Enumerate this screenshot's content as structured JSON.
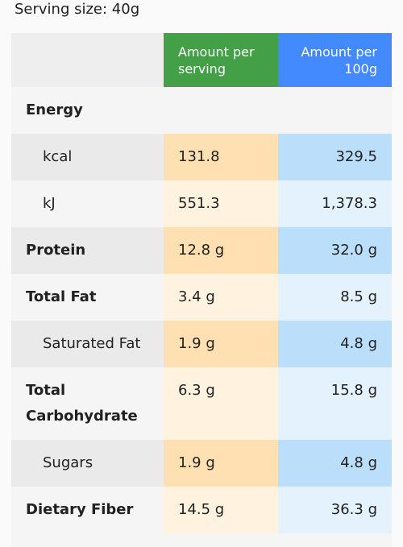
{
  "header": {
    "serving_size": "Serving size: 40g"
  },
  "table": {
    "columns": [
      "Amount per serving",
      "Amount per 100g"
    ],
    "rows": [
      {
        "label": "Energy",
        "indent": false
      },
      {
        "label": "kcal",
        "indent": true,
        "per_serving": "131.8",
        "per_100g": "329.5"
      },
      {
        "label": "kJ",
        "indent": true,
        "per_serving": "551.3",
        "per_100g": "1,378.3"
      },
      {
        "label": "Protein",
        "indent": false,
        "per_serving": "12.8 g",
        "per_100g": "32.0 g"
      },
      {
        "label": "Total Fat",
        "indent": false,
        "per_serving": "3.4 g",
        "per_100g": "8.5 g"
      },
      {
        "label": "Saturated Fat",
        "indent": true,
        "per_serving": "1.9 g",
        "per_100g": "4.8 g"
      },
      {
        "label": "Total Carbohydrate",
        "indent": false,
        "per_serving": "6.3 g",
        "per_100g": "15.8 g"
      },
      {
        "label": "Sugars",
        "indent": true,
        "per_serving": "1.9 g",
        "per_100g": "4.8 g"
      },
      {
        "label": "Dietary Fiber",
        "indent": false,
        "per_serving": "14.5 g",
        "per_100g": "36.3 g"
      }
    ]
  }
}
